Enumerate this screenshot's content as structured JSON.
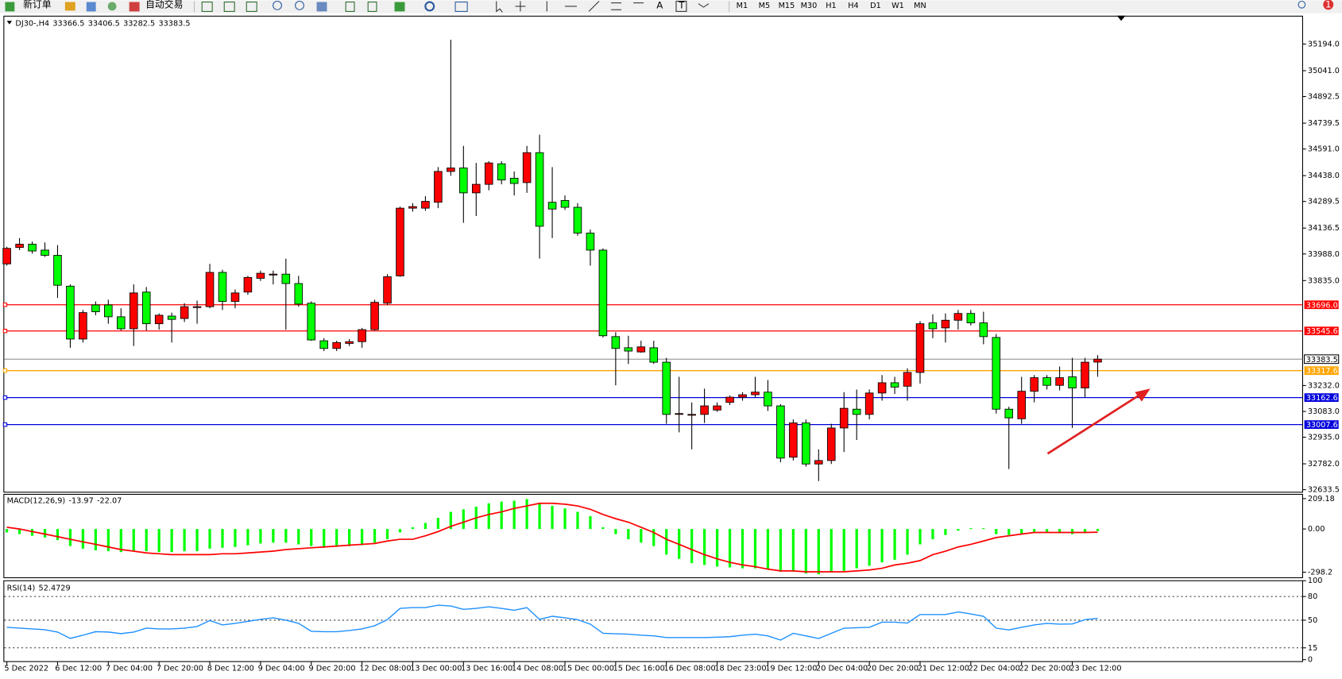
{
  "toolbar": {
    "buttons": [
      "新订单",
      "自动交易"
    ],
    "tools": [
      "A",
      "T"
    ],
    "timeframes": [
      "M1",
      "M5",
      "M15",
      "M30",
      "H1",
      "H4",
      "D1",
      "W1",
      "MN"
    ],
    "badge": "1"
  },
  "chart_data": [
    {
      "type": "candlestick",
      "title": "DJ30-,H4",
      "categories": [
        "5 Dec 2022",
        null,
        null,
        null,
        "6 Dec 12:00",
        null,
        null,
        null,
        "7 Dec 04:00",
        null,
        null,
        null,
        "7 Dec 20:00",
        null,
        null,
        null,
        "8 Dec 12:00",
        null,
        null,
        null,
        "9 Dec 04:00",
        null,
        null,
        null,
        "9 Dec 20:00",
        null,
        null,
        null,
        "12 Dec 08:00",
        null,
        null,
        null,
        "13 Dec 00:00",
        null,
        null,
        null,
        "13 Dec 16:00",
        null,
        null,
        null,
        "14 Dec 08:00",
        null,
        null,
        null,
        "15 Dec 00:00",
        null,
        null,
        null,
        "15 Dec 16:00",
        null,
        null,
        null,
        "16 Dec 08:00",
        null,
        null,
        null,
        "18 Dec 23:00",
        null,
        null,
        null,
        "19 Dec 12:00",
        null,
        null,
        null,
        "20 Dec 04:00",
        null,
        null,
        null,
        "20 Dec 20:00",
        null,
        null,
        null,
        "21 Dec 12:00",
        null,
        null,
        null,
        "22 Dec 04:00",
        null,
        null,
        null,
        "22 Dec 20:00",
        null,
        null,
        null,
        "23 Dec 12:00",
        null,
        null
      ],
      "open": [
        33931,
        34025,
        34044,
        34010,
        33980,
        33803,
        33499,
        33695,
        33695,
        33627,
        33558,
        33769,
        33587,
        33631,
        33617,
        33680,
        33685,
        33882,
        33715,
        33769,
        33848,
        33872,
        33872,
        33818,
        33705,
        33489,
        33445,
        33474,
        33484,
        33553,
        33705,
        33862,
        34251,
        34251,
        34285,
        34462,
        34482,
        34339,
        34388,
        34506,
        34423,
        34398,
        34570,
        34285,
        34295,
        34256,
        34108,
        34010,
        33513,
        33449,
        33425,
        33449,
        33366,
        33066,
        33066,
        33066,
        33091,
        33135,
        33165,
        33179,
        33194,
        33115,
        32820,
        33017,
        32781,
        32801,
        32988,
        33096,
        33066,
        33189,
        33248,
        33228,
        33307,
        33592,
        33563,
        33607,
        33646,
        33592,
        33508,
        33096,
        33041,
        33199,
        33277,
        33233,
        33282,
        33218,
        33366.5
      ],
      "high": [
        34029,
        34079,
        34059,
        34054,
        34039,
        33813,
        33666,
        33715,
        33725,
        33676,
        33813,
        33798,
        33646,
        33651,
        33705,
        33720,
        33931,
        33897,
        33784,
        33862,
        33892,
        33892,
        33961,
        33862,
        33715,
        33504,
        33489,
        33499,
        33563,
        33725,
        33872,
        34260,
        34280,
        34320,
        34487,
        35219,
        34609,
        34511,
        34521,
        34521,
        34462,
        34609,
        34673,
        34487,
        34324,
        34280,
        34128,
        34020,
        33538,
        33518,
        33489,
        33489,
        33391,
        33282,
        33135,
        33214,
        33135,
        33174,
        33194,
        33282,
        33263,
        33125,
        33037,
        33037,
        32865,
        33012,
        33194,
        33209,
        33209,
        33292,
        33282,
        33331,
        33602,
        33641,
        33646,
        33666,
        33666,
        33656,
        33528,
        33110,
        33282,
        33292,
        33292,
        33341,
        33391,
        33391,
        33406.5
      ],
      "low": [
        33921,
        34010,
        33990,
        33971,
        33735,
        33449,
        33479,
        33636,
        33587,
        33548,
        33459,
        33548,
        33553,
        33479,
        33597,
        33587,
        33676,
        33666,
        33676,
        33754,
        33833,
        33813,
        33553,
        33685,
        33489,
        33430,
        33430,
        33459,
        33449,
        33548,
        33695,
        33857,
        34231,
        34236,
        34251,
        34437,
        34167,
        34206,
        34354,
        34388,
        34324,
        34339,
        33961,
        34079,
        34241,
        34093,
        33921,
        33508,
        33233,
        33356,
        33420,
        33356,
        33012,
        32963,
        32865,
        33017,
        33081,
        33120,
        33145,
        33165,
        33086,
        32791,
        32801,
        32766,
        32683,
        32781,
        32850,
        32919,
        33037,
        33145,
        33184,
        33145,
        33243,
        33504,
        33479,
        33553,
        33577,
        33469,
        33071,
        32752,
        33012,
        33135,
        33209,
        33204,
        32988,
        33165,
        33282.5
      ],
      "close": [
        34020,
        34044,
        34005,
        33980,
        33808,
        33499,
        33651,
        33656,
        33627,
        33558,
        33764,
        33587,
        33636,
        33612,
        33685,
        33685,
        33882,
        33715,
        33764,
        33853,
        33877,
        33872,
        33818,
        33700,
        33494,
        33445,
        33479,
        33484,
        33553,
        33710,
        33857,
        34251,
        34260,
        34290,
        34462,
        34482,
        34339,
        34388,
        34511,
        34413,
        34393,
        34570,
        34147,
        34246,
        34256,
        34108,
        34010,
        33518,
        33445,
        33430,
        33454,
        33366,
        33066,
        33071,
        33066,
        33115,
        33115,
        33165,
        33179,
        33194,
        33115,
        32815,
        33017,
        32781,
        32801,
        32988,
        33101,
        33066,
        33189,
        33248,
        33223,
        33307,
        33587,
        33558,
        33607,
        33646,
        33592,
        33513,
        33096,
        33046,
        33199,
        33277,
        33233,
        33277,
        33218,
        33366,
        33383.5
      ],
      "up_color": "#ff0000",
      "down_color": "#00ff00",
      "ylim": [
        32619,
        35347
      ],
      "yticks": [
        {
          "value": 35194,
          "label": "35194.0"
        },
        {
          "value": 35041,
          "label": "35041.0"
        },
        34892.5,
        34739.5,
        {
          "value": 34591,
          "label": "34591.0"
        },
        {
          "value": 34438,
          "label": "34438.0"
        },
        34289.5,
        34136.5,
        {
          "value": 33988,
          "label": "33988.0"
        },
        {
          "value": 33835,
          "label": "33835.0"
        },
        {
          "value": 33232,
          "label": "33232.0"
        },
        {
          "value": 33083,
          "label": "33083.0"
        },
        {
          "value": 32935,
          "label": "32935.0"
        },
        {
          "value": 32782,
          "label": "32782.0"
        },
        32633.5
      ],
      "levels": [
        {
          "value": 33696,
          "label": "33696.0",
          "color": "#ff0000"
        },
        {
          "value": 33545.6,
          "color": "#ff0000"
        },
        {
          "value": 33317.6,
          "color": "#ffa500"
        },
        {
          "value": 33162.6,
          "color": "#0000dd"
        },
        {
          "value": 33007.6,
          "color": "#0000dd"
        }
      ]
    },
    {
      "type": "macd",
      "title": "MACD(12,26,9)",
      "histogram": {
        "color": "#00ff00",
        "values": [
          -23.6,
          -35.4,
          -47.2,
          -59,
          -76.7,
          -118,
          -135.7,
          -147.5,
          -153.4,
          -159.3,
          -147.5,
          -153.4,
          -159.3,
          -159.3,
          -153.4,
          -153.4,
          -135.7,
          -129.8,
          -123.9,
          -112.1,
          -100.3,
          -94.4,
          -94.4,
          -106.2,
          -118,
          -129.8,
          -123.9,
          -118,
          -112.1,
          -94.4,
          -70.8,
          -23.6,
          11.8,
          41.3,
          76.7,
          118,
          135.7,
          153.4,
          177,
          188.8,
          194.7,
          206.5,
          177,
          159.3,
          141.6,
          118,
          88.5,
          11.8,
          -35.4,
          -70.8,
          -94.4,
          -118,
          -177,
          -206.5,
          -236,
          -247.8,
          -259.6,
          -265.5,
          -271.4,
          -271.4,
          -277.3,
          -295,
          -295,
          -306.8,
          -312.7,
          -300.9,
          -289.1,
          -271.4,
          -253.7,
          -230.1,
          -212.4,
          -177,
          -106.2,
          -70.8,
          -41.3,
          -11.8,
          5.9,
          5.9,
          -35.4,
          -41.3,
          -29.5,
          -23.6,
          -23.6,
          -29.5,
          -35.4,
          -29.5,
          -13.97
        ]
      },
      "signal": {
        "color": "#ff0000",
        "values": [
          12,
          0,
          -18,
          -35,
          -53,
          -71,
          -89,
          -106,
          -124,
          -142,
          -153,
          -165,
          -171,
          -177,
          -177,
          -177,
          -177,
          -171,
          -171,
          -165,
          -159,
          -153,
          -142,
          -136,
          -130,
          -124,
          -118,
          -112,
          -106,
          -100,
          -83,
          -71,
          -71,
          -47,
          -18,
          18,
          47,
          77,
          100,
          118,
          142,
          159,
          177,
          177,
          171,
          159,
          136,
          100,
          71,
          47,
          12,
          -24,
          -71,
          -106,
          -142,
          -177,
          -206,
          -230,
          -248,
          -260,
          -277,
          -289,
          -289,
          -295,
          -295,
          -295,
          -295,
          -289,
          -283,
          -271,
          -248,
          -236,
          -218,
          -177,
          -153,
          -124,
          -106,
          -83,
          -59,
          -47,
          -35,
          -24,
          -24,
          -24,
          -24,
          -24,
          -22.07
        ]
      },
      "ylim": [
        -336.3,
        241.9
      ],
      "yticks": [
        209.18,
        {
          "value": 0,
          "label": "0.00"
        },
        -298.2
      ]
    },
    {
      "type": "line",
      "title": "RSI(14)",
      "color": "#1e90ff",
      "values": [
        41,
        40,
        39,
        38,
        35,
        27,
        31,
        35.5,
        35,
        33,
        35,
        40,
        39,
        39,
        40,
        42,
        49.6,
        44,
        46,
        48.5,
        51,
        53,
        50,
        46,
        36,
        35.5,
        35.5,
        37,
        39,
        43,
        50.7,
        65,
        66,
        66,
        69,
        68,
        63.7,
        65,
        67,
        65,
        62.6,
        65.9,
        51,
        55,
        53,
        50.7,
        45,
        33.4,
        32.8,
        32.3,
        31,
        30.2,
        28,
        28,
        28,
        28,
        28.5,
        29.1,
        31,
        32.3,
        30.2,
        24.8,
        33.4,
        30.2,
        26.8,
        33.4,
        39.9,
        40.5,
        41,
        47.5,
        47.5,
        46.4,
        57.2,
        57.2,
        57.2,
        60.5,
        58,
        55,
        39.9,
        37.7,
        41,
        44,
        46,
        45,
        45.3,
        50.7,
        52.4729
      ],
      "ylim": [
        0,
        100
      ],
      "yticks": [
        100,
        80,
        50,
        15,
        0
      ],
      "levels": [
        80,
        50,
        15
      ]
    }
  ]
}
